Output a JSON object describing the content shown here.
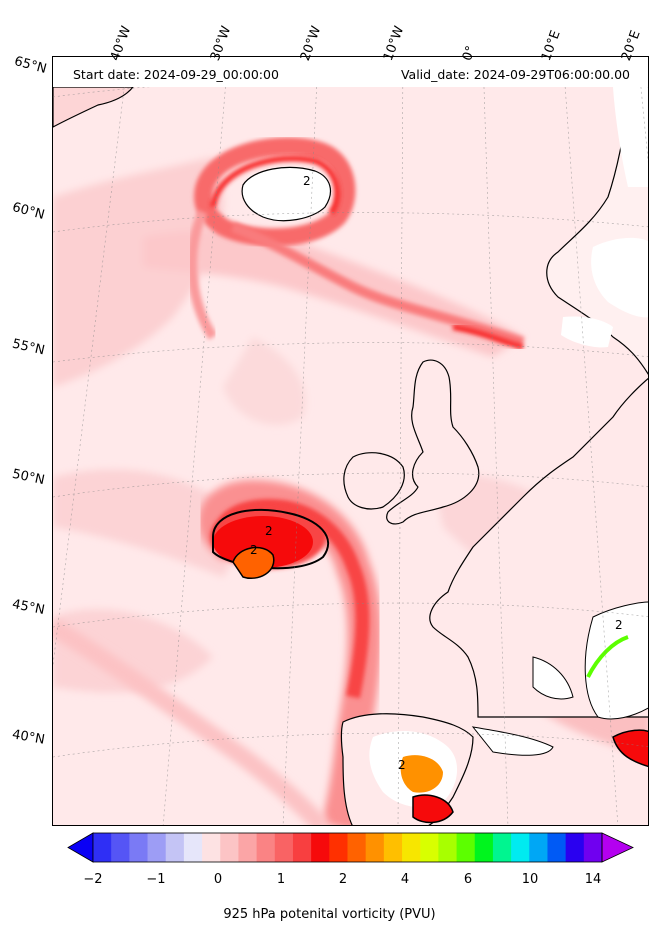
{
  "header": {
    "start_date": "Start date: 2024-09-29_00:00:00",
    "valid_date": "Valid_date: 2024-09-29T06:00:00.00"
  },
  "longitude_labels": [
    "40°W",
    "30°W",
    "20°W",
    "10°W",
    "0°",
    "10°E",
    "20°E"
  ],
  "latitude_labels": [
    "65°N",
    "60°N",
    "55°N",
    "50°N",
    "45°N",
    "40°N"
  ],
  "contour_labels": [
    "2",
    "2",
    "2",
    "2",
    "2"
  ],
  "colorbar": {
    "title": "925 hPa potenital vorticity (PVU)",
    "tick_labels": [
      "−2",
      "−1",
      "0",
      "1",
      "2",
      "4",
      "6",
      "10",
      "14"
    ],
    "colors": [
      "#0a00f5",
      "#2f2ff5",
      "#5555f5",
      "#7a7af5",
      "#9d9df5",
      "#c4c4f5",
      "#e6e6fa",
      "#fde2e3",
      "#fcc4c5",
      "#fba5a6",
      "#fa8384",
      "#f96364",
      "#f83f40",
      "#f60a0b",
      "#ff3000",
      "#ff6200",
      "#ff9100",
      "#ffbf00",
      "#f7e600",
      "#d8ff00",
      "#a8ff00",
      "#5cff00",
      "#00f51e",
      "#00f590",
      "#00ebf0",
      "#00a7f5",
      "#005af5",
      "#2a00f0",
      "#7000f0",
      "#b400f0"
    ]
  },
  "colors": {
    "background_pv": "#ffe9ea",
    "coastline": "#000000",
    "land_mask": "#ffffff"
  }
}
